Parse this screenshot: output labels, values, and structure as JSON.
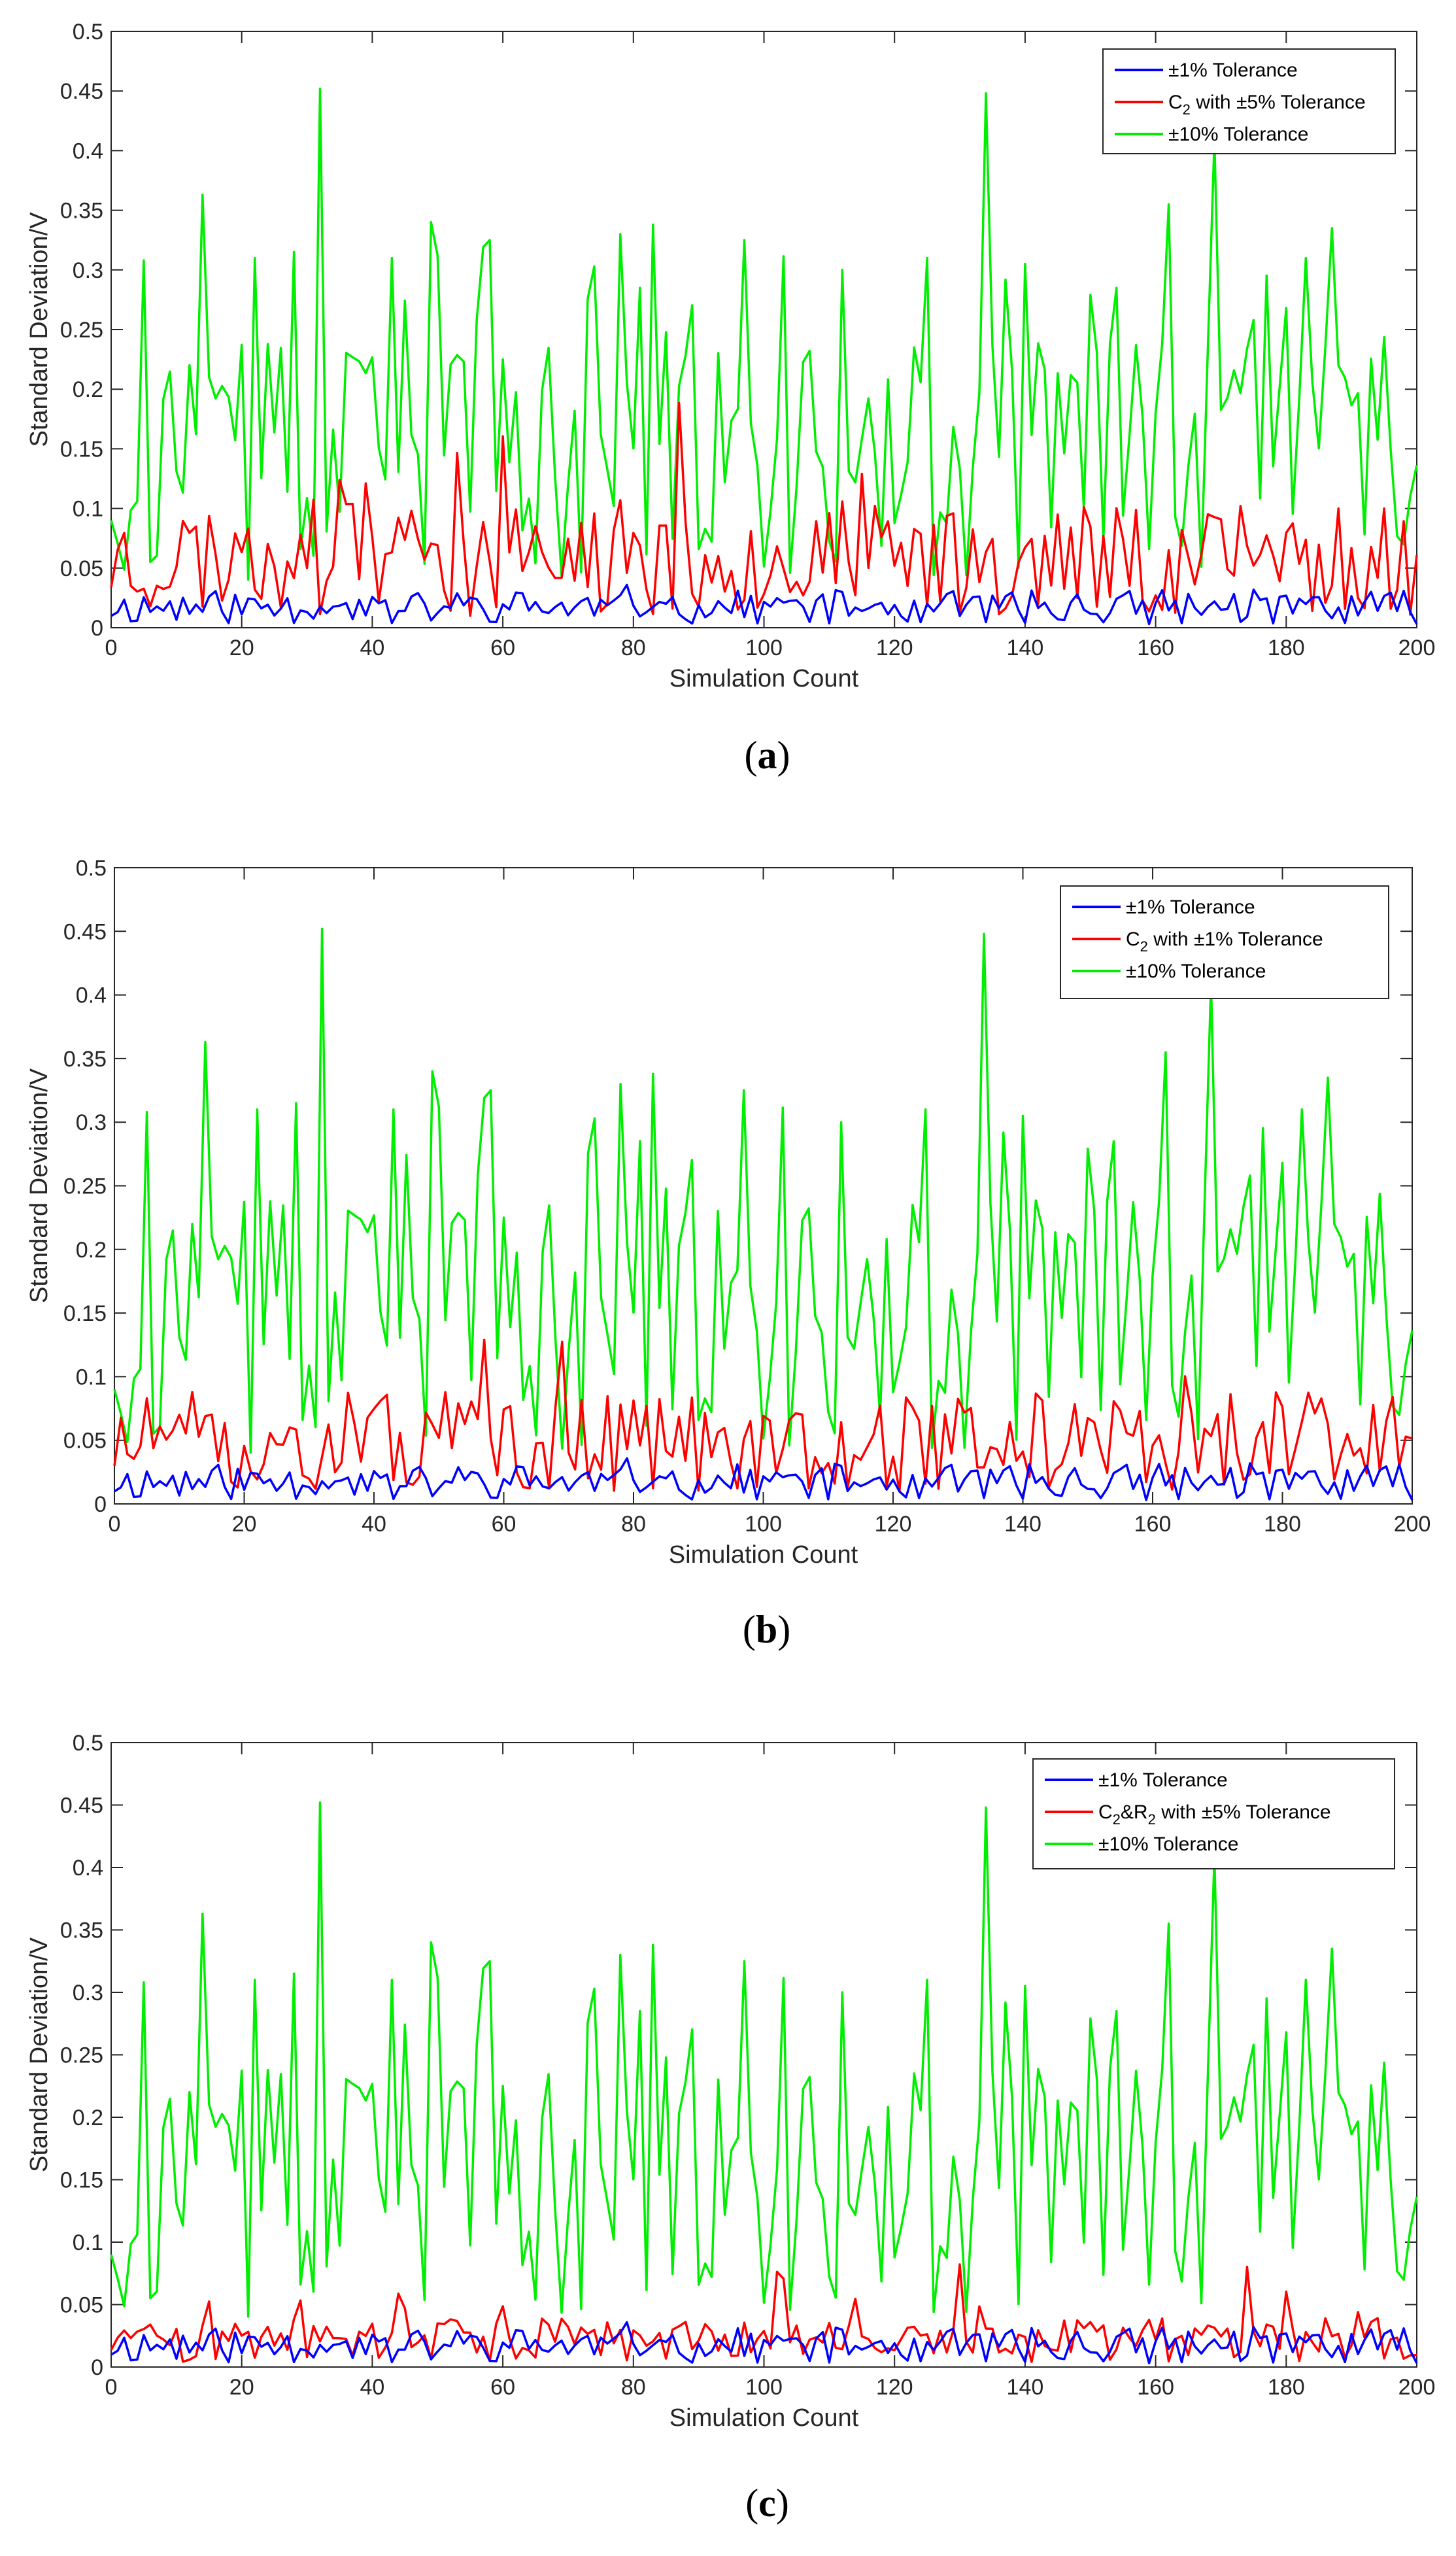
{
  "chart_data": [
    {
      "type": "line",
      "panel_label": "a",
      "xlabel": "Simulation Count",
      "ylabel": "Standard Deviation/V",
      "xlim": [
        0,
        200
      ],
      "ylim": [
        0,
        0.5
      ],
      "xticks": [
        "0",
        "20",
        "40",
        "60",
        "80",
        "100",
        "120",
        "140",
        "160",
        "180",
        "200"
      ],
      "yticks": [
        "0",
        "0.05",
        "0.1",
        "0.15",
        "0.2",
        "0.25",
        "0.3",
        "0.35",
        "0.4",
        "0.45",
        "0.5"
      ],
      "legend_position": "top-right",
      "series": [
        {
          "name": "±1% Tolerance",
          "color": "#0000ff",
          "profile": "low",
          "amp": 0.022,
          "seed": 11
        },
        {
          "legend_text": {
            "pre": "C",
            "sub": "2",
            "post": " with ±5% Tolerance"
          },
          "name": "C2 with ±5% Tolerance",
          "color": "#ff0000",
          "profile": "mid",
          "amp": 0.075,
          "seed": 23
        },
        {
          "name": "±10% Tolerance",
          "color": "#00ee00",
          "profile": "high",
          "amp": 0.17,
          "seed": 37
        }
      ]
    },
    {
      "type": "line",
      "panel_label": "b",
      "xlabel": "Simulation Count",
      "ylabel": "Standard Deviation/V",
      "xlim": [
        0,
        200
      ],
      "ylim": [
        0,
        0.5
      ],
      "xticks": [
        "0",
        "20",
        "40",
        "60",
        "80",
        "100",
        "120",
        "140",
        "160",
        "180",
        "200"
      ],
      "yticks": [
        "0",
        "0.05",
        "0.1",
        "0.15",
        "0.2",
        "0.25",
        "0.3",
        "0.35",
        "0.4",
        "0.45",
        "0.5"
      ],
      "legend_position": "top-right",
      "series": [
        {
          "name": "±1% Tolerance",
          "color": "#0000ff",
          "profile": "low",
          "amp": 0.022,
          "seed": 11
        },
        {
          "legend_text": {
            "pre": "C",
            "sub": "2",
            "post": " with ±1% Tolerance"
          },
          "name": "C2 with ±1% Tolerance",
          "color": "#ff0000",
          "profile": "mid",
          "amp": 0.06,
          "seed": 51
        },
        {
          "name": "±10% Tolerance",
          "color": "#00ee00",
          "profile": "high",
          "amp": 0.17,
          "seed": 37
        }
      ]
    },
    {
      "type": "line",
      "panel_label": "c",
      "xlabel": "Simulation Count",
      "ylabel": "Standard Deviation/V",
      "xlim": [
        0,
        200
      ],
      "ylim": [
        0,
        0.5
      ],
      "xticks": [
        "0",
        "20",
        "40",
        "60",
        "80",
        "100",
        "120",
        "140",
        "160",
        "180",
        "200"
      ],
      "yticks": [
        "0",
        "0.05",
        "0.1",
        "0.15",
        "0.2",
        "0.25",
        "0.3",
        "0.35",
        "0.4",
        "0.45",
        "0.5"
      ],
      "legend_position": "top-right",
      "series": [
        {
          "name": "±1% Tolerance",
          "color": "#0000ff",
          "profile": "low",
          "amp": 0.022,
          "seed": 11
        },
        {
          "legend_text": {
            "pre": "C",
            "sub": "2",
            "mid": "&R",
            "sub2": "2",
            "post": " with ±5% Tolerance"
          },
          "name": "C2&R2 with ±5% Tolerance",
          "color": "#ff0000",
          "profile": "low2",
          "amp": 0.03,
          "seed": 77
        },
        {
          "name": "±10% Tolerance",
          "color": "#00ee00",
          "profile": "high",
          "amp": 0.17,
          "seed": 37
        }
      ]
    }
  ]
}
